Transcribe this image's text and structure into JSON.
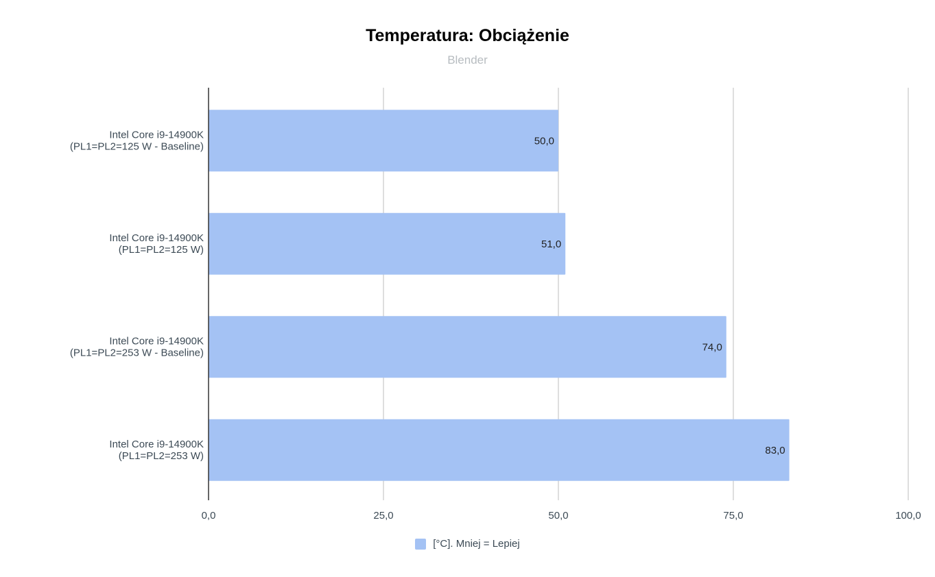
{
  "chart_data": {
    "type": "bar",
    "orientation": "horizontal",
    "title": "Temperatura: Obciążenie",
    "subtitle": "Blender",
    "categories": [
      [
        "Intel Core i9-14900K",
        "(PL1=PL2=125 W - Baseline)"
      ],
      [
        "Intel Core i9-14900K",
        "(PL1=PL2=125 W)"
      ],
      [
        "Intel Core i9-14900K",
        "(PL1=PL2=253 W - Baseline)"
      ],
      [
        "Intel Core i9-14900K",
        "(PL1=PL2=253 W)"
      ]
    ],
    "series": [
      {
        "name": "[°C]. Mniej = Lepiej",
        "values": [
          50.0,
          51.0,
          74.0,
          83.0
        ],
        "data_labels": [
          "50,0",
          "51,0",
          "74,0",
          "83,0"
        ],
        "color": "#a4c2f4"
      }
    ],
    "xlim": [
      0,
      100
    ],
    "xticks": [
      0,
      25,
      50,
      75,
      100
    ],
    "xtick_labels": [
      "0,0",
      "25,0",
      "50,0",
      "75,0",
      "100,0"
    ],
    "grid": true,
    "legend": "bottom"
  }
}
